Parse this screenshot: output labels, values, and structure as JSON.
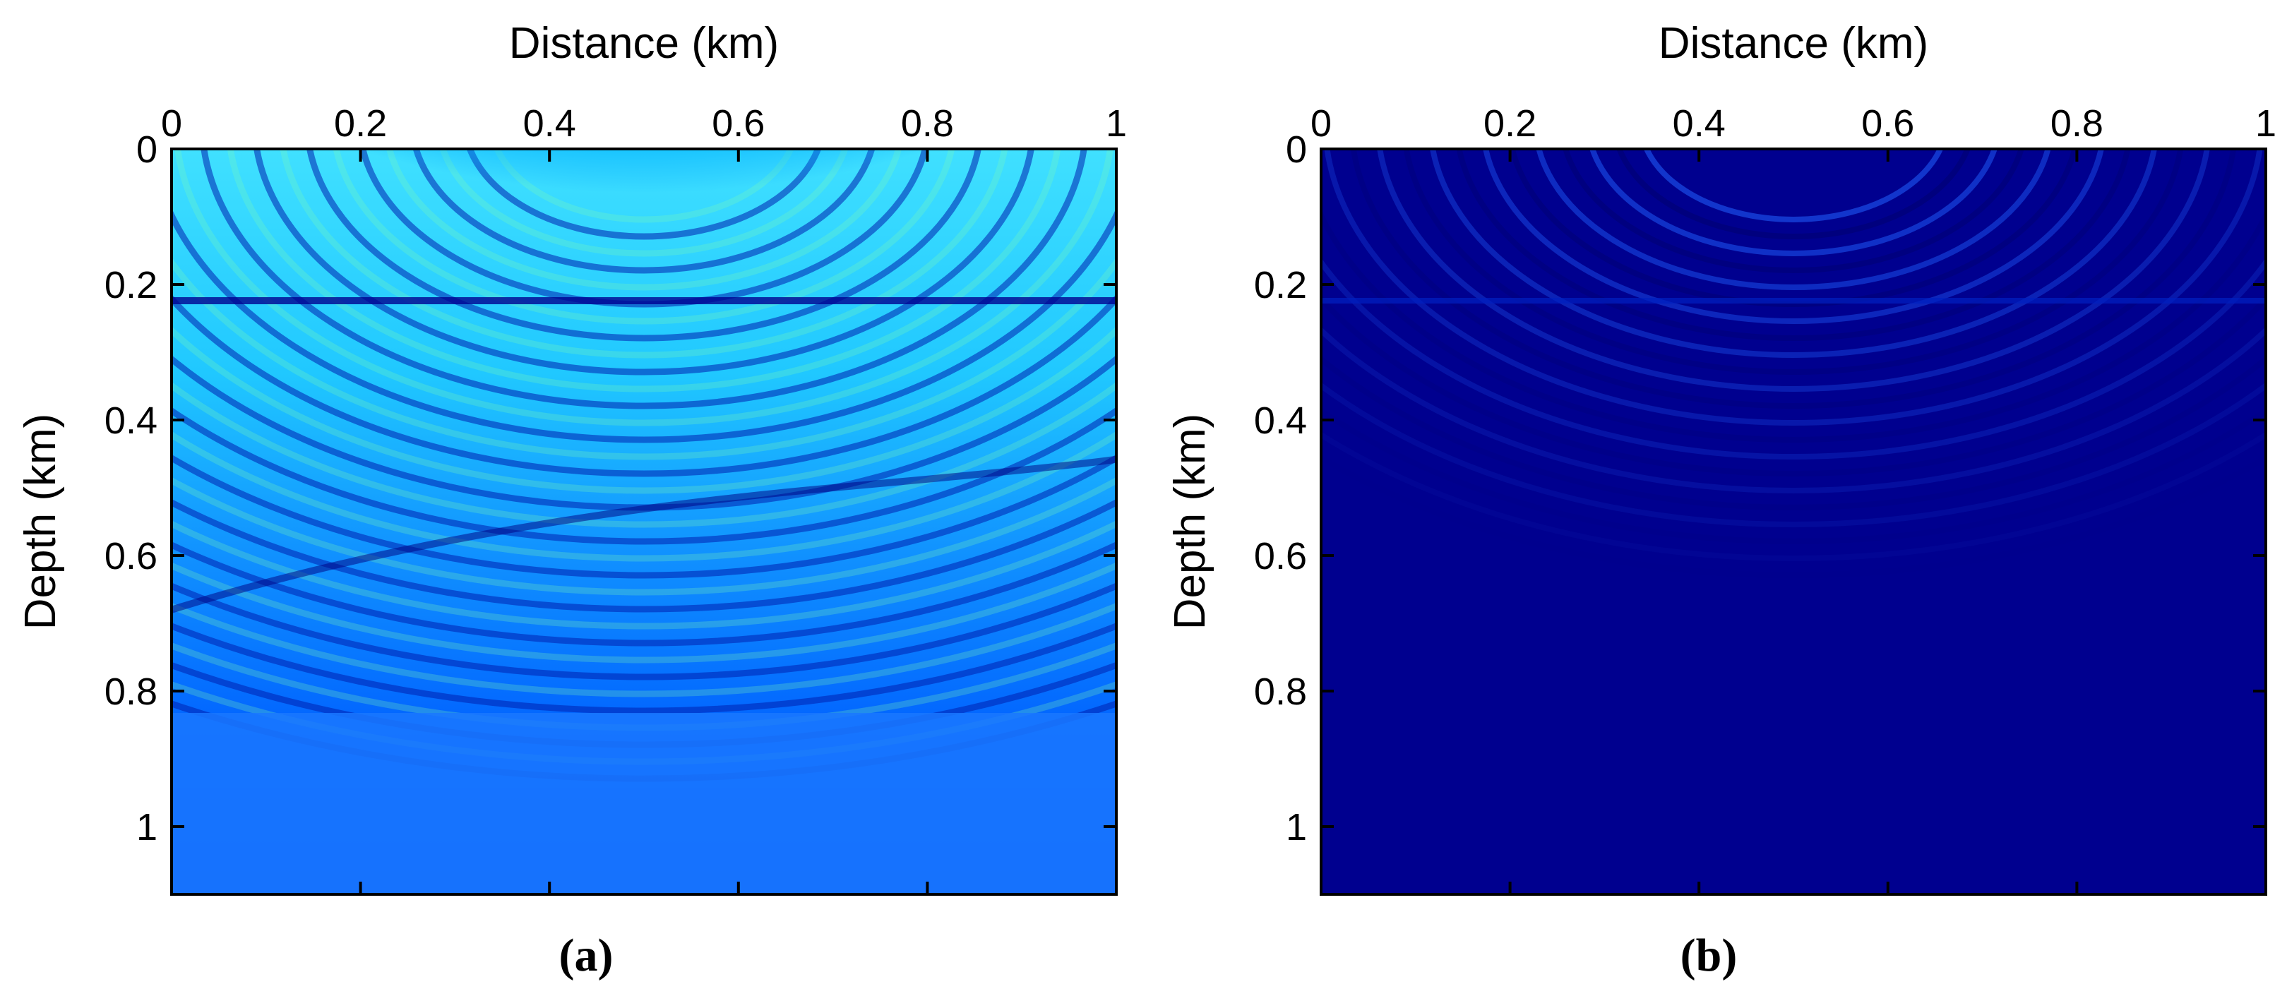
{
  "chart_data": [
    {
      "type": "heatmap",
      "panel": "a",
      "caption": "(a)",
      "xlabel": "Distance (km)",
      "ylabel": "Depth (km)",
      "xlim": [
        0,
        1
      ],
      "ylim": [
        0,
        1.1
      ],
      "x_ticks": [
        "0",
        "0.2",
        "0.4",
        "0.6",
        "0.8",
        "1"
      ],
      "y_ticks": [
        "0",
        "0.2",
        "0.4",
        "0.6",
        "0.8",
        "1"
      ],
      "colormap": "jet",
      "source_x_km": 0.5,
      "interfaces_depth_km": [
        0.22,
        0.5
      ],
      "description_scale": "full"
    },
    {
      "type": "heatmap",
      "panel": "b",
      "caption": "(b)",
      "xlabel": "Distance (km)",
      "ylabel": "Depth (km)",
      "xlim": [
        0,
        1
      ],
      "ylim": [
        0,
        1.1
      ],
      "x_ticks": [
        "0",
        "0.2",
        "0.4",
        "0.6",
        "0.8",
        "1"
      ],
      "y_ticks": [
        "0",
        "0.2",
        "0.4",
        "0.6",
        "0.8",
        "1"
      ],
      "colormap": "jet",
      "source_x_km": 0.5,
      "interfaces_depth_km": [
        0.22
      ],
      "description_scale": "attenuated"
    }
  ]
}
